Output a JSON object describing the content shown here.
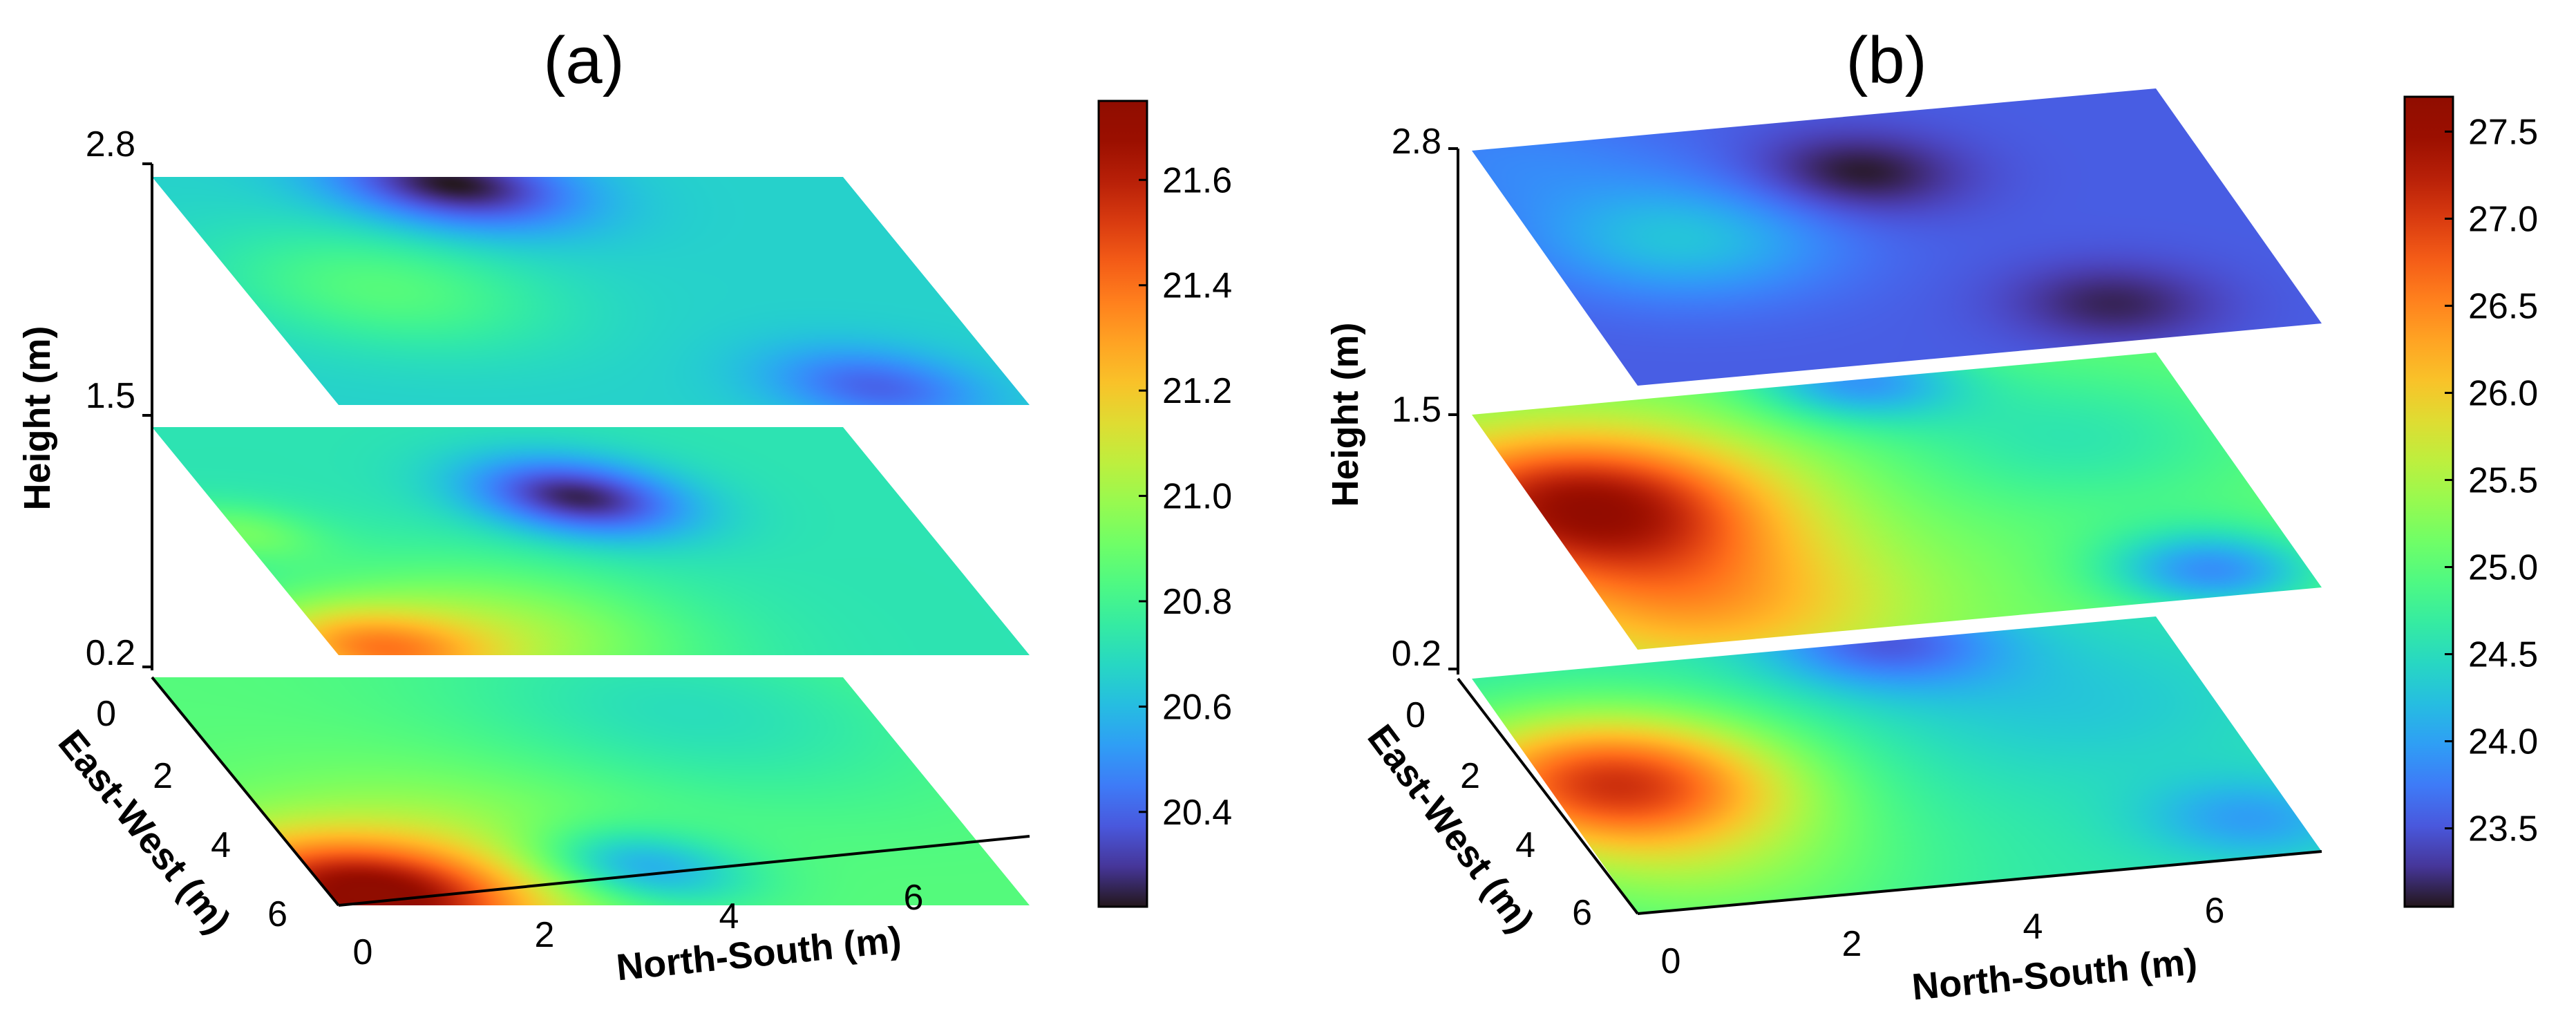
{
  "figure": {
    "colormap": "turbo"
  },
  "chart_data": [
    {
      "type": "heatmap",
      "subtype": "stacked-3d-slices",
      "title": "(a)",
      "xlabel": "North-South (m)",
      "ylabel": "East-West (m)",
      "zlabel": "Height (m)",
      "x_ticks": [
        "0",
        "2",
        "4",
        "6"
      ],
      "y_ticks": [
        "0",
        "2",
        "4",
        "6"
      ],
      "z_ticks": [
        "0.2",
        "1.5",
        "2.8"
      ],
      "xlim": [
        0,
        7.5
      ],
      "ylim": [
        0,
        6.5
      ],
      "clim": [
        20.22,
        21.75
      ],
      "colorbar_ticks": [
        "20.4",
        "20.6",
        "20.8",
        "21.0",
        "21.2",
        "21.4",
        "21.6"
      ],
      "slices": [
        {
          "height": 0.2,
          "background": 20.85,
          "hotspots": [
            {
              "ns": 0.4,
              "ew": 6.3,
              "value": 21.72,
              "sigma": 1.2
            },
            {
              "ns": 2.0,
              "ew": 4.6,
              "value": 21.0,
              "sigma": 1.5
            },
            {
              "ns": 3.6,
              "ew": 5.4,
              "value": 20.5,
              "sigma": 0.8
            },
            {
              "ns": 5.5,
              "ew": 1.0,
              "value": 20.7,
              "sigma": 1.8
            }
          ]
        },
        {
          "height": 1.5,
          "background": 20.72,
          "hotspots": [
            {
              "ns": 4.0,
              "ew": 2.0,
              "value": 20.25,
              "sigma": 0.8
            },
            {
              "ns": 0.4,
              "ew": 6.4,
              "value": 21.25,
              "sigma": 0.9
            },
            {
              "ns": 2.0,
              "ew": 5.8,
              "value": 21.0,
              "sigma": 1.4
            },
            {
              "ns": 0.0,
              "ew": 3.0,
              "value": 20.9,
              "sigma": 0.6
            }
          ]
        },
        {
          "height": 2.8,
          "background": 20.66,
          "hotspots": [
            {
              "ns": 3.2,
              "ew": 0.2,
              "value": 20.22,
              "sigma": 0.9
            },
            {
              "ns": 6.0,
              "ew": 6.0,
              "value": 20.4,
              "sigma": 0.8
            },
            {
              "ns": 1.5,
              "ew": 3.2,
              "value": 20.85,
              "sigma": 1.2
            }
          ]
        }
      ]
    },
    {
      "type": "heatmap",
      "subtype": "stacked-3d-slices",
      "title": "(b)",
      "xlabel": "North-South (m)",
      "ylabel": "East-West (m)",
      "zlabel": "Height (m)",
      "x_ticks": [
        "0",
        "2",
        "4",
        "6"
      ],
      "y_ticks": [
        "0",
        "2",
        "4",
        "6"
      ],
      "z_ticks": [
        "0.2",
        "1.5",
        "2.8"
      ],
      "xlim": [
        0,
        7.5
      ],
      "ylim": [
        0,
        6.5
      ],
      "clim": [
        23.05,
        27.7
      ],
      "colorbar_ticks": [
        "23.5",
        "24.0",
        "24.5",
        "25.0",
        "25.5",
        "26.0",
        "26.5",
        "27.0",
        "27.5"
      ],
      "slices": [
        {
          "height": 0.2,
          "background": 24.6,
          "hotspots": [
            {
              "ns": 0.7,
              "ew": 3.0,
              "value": 26.9,
              "sigma": 1.3
            },
            {
              "ns": 1.0,
              "ew": 5.5,
              "value": 25.2,
              "sigma": 1.6
            },
            {
              "ns": 4.5,
              "ew": 0.0,
              "value": 23.6,
              "sigma": 0.9
            },
            {
              "ns": 7.0,
              "ew": 5.5,
              "value": 24.0,
              "sigma": 0.8
            },
            {
              "ns": 6.0,
              "ew": 2.0,
              "value": 24.3,
              "sigma": 1.5
            }
          ]
        },
        {
          "height": 1.5,
          "background": 25.1,
          "hotspots": [
            {
              "ns": 0.5,
              "ew": 2.6,
              "value": 27.4,
              "sigma": 1.4
            },
            {
              "ns": 1.0,
              "ew": 5.5,
              "value": 26.2,
              "sigma": 1.5
            },
            {
              "ns": 6.5,
              "ew": 5.8,
              "value": 23.9,
              "sigma": 0.8
            },
            {
              "ns": 4.2,
              "ew": 0.0,
              "value": 24.0,
              "sigma": 0.8
            },
            {
              "ns": 6.0,
              "ew": 2.0,
              "value": 24.6,
              "sigma": 1.4
            }
          ]
        },
        {
          "height": 2.8,
          "background": 23.55,
          "hotspots": [
            {
              "ns": 3.8,
              "ew": 1.5,
              "value": 23.05,
              "sigma": 0.8
            },
            {
              "ns": 5.5,
              "ew": 5.5,
              "value": 23.15,
              "sigma": 0.8
            },
            {
              "ns": 1.5,
              "ew": 2.8,
              "value": 24.25,
              "sigma": 1.1
            },
            {
              "ns": 0.3,
              "ew": 0.3,
              "value": 23.8,
              "sigma": 1.2
            }
          ]
        }
      ]
    }
  ]
}
